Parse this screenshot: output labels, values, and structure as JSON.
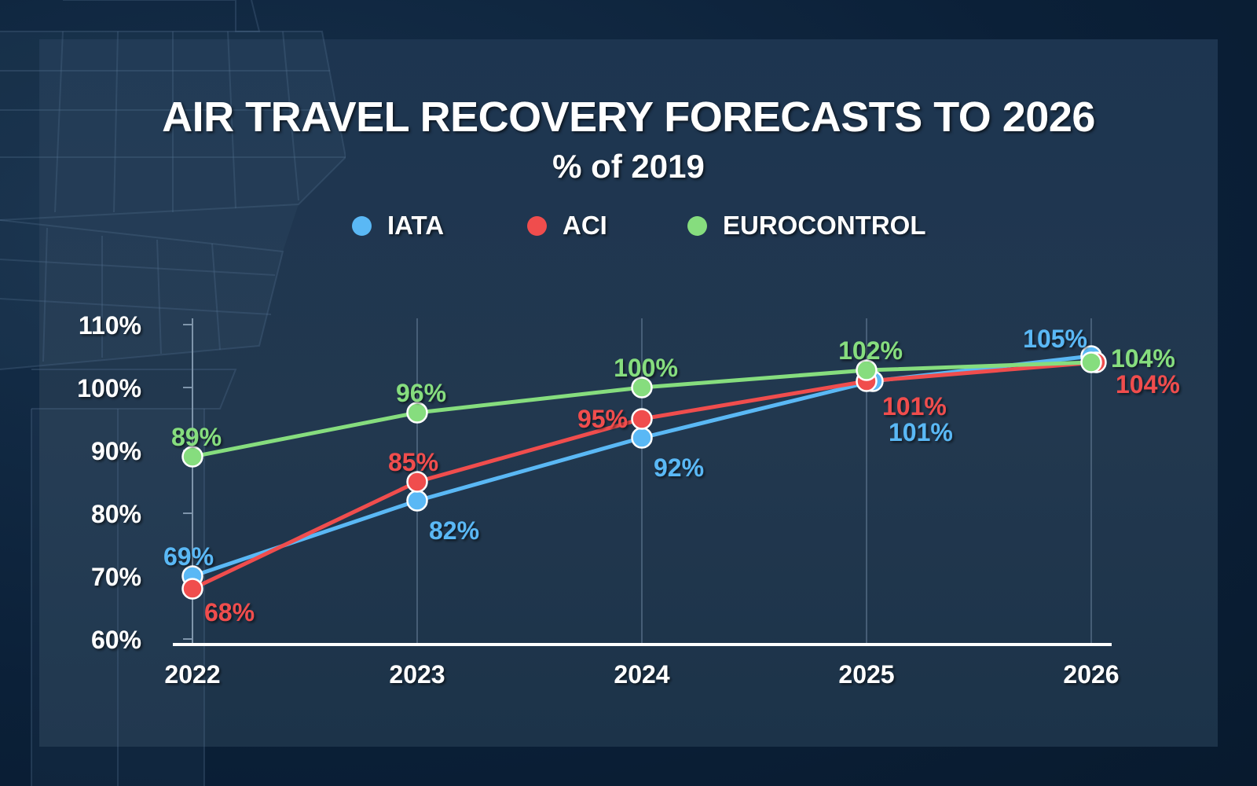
{
  "header": {
    "title": "AIR TRAVEL RECOVERY FORECASTS TO 2026",
    "subtitle": "% of 2019"
  },
  "colors": {
    "iata": "#5ab8f5",
    "aci": "#f04d4d",
    "eurocontrol": "#86dd7e",
    "background": "#0b2038",
    "panel": "#22384f"
  },
  "legend": [
    {
      "label": "IATA",
      "color": "#5ab8f5"
    },
    {
      "label": "ACI",
      "color": "#f04d4d"
    },
    {
      "label": "EUROCONTROL",
      "color": "#86dd7e"
    }
  ],
  "chart_data": {
    "type": "line",
    "title": "AIR TRAVEL RECOVERY FORECASTS TO 2026",
    "subtitle": "% of 2019",
    "categories": [
      "2022",
      "2023",
      "2024",
      "2025",
      "2026"
    ],
    "y_ticks": [
      "60%",
      "70%",
      "80%",
      "90%",
      "100%",
      "110%"
    ],
    "ylim": [
      60,
      110
    ],
    "grid": "vertical",
    "legend_position": "top",
    "series": [
      {
        "name": "IATA",
        "color": "#5ab8f5",
        "values": [
          69,
          82,
          92,
          101,
          105
        ],
        "labels": [
          "69%",
          "82%",
          "92%",
          "101%",
          "105%"
        ]
      },
      {
        "name": "ACI",
        "color": "#f04d4d",
        "values": [
          68,
          85,
          95,
          101,
          104
        ],
        "labels": [
          "68%",
          "85%",
          "95%",
          "101%",
          "104%"
        ]
      },
      {
        "name": "EUROCONTROL",
        "color": "#86dd7e",
        "values": [
          89,
          96,
          100,
          102,
          104
        ],
        "labels": [
          "89%",
          "96%",
          "100%",
          "102%",
          "104%"
        ]
      }
    ]
  }
}
